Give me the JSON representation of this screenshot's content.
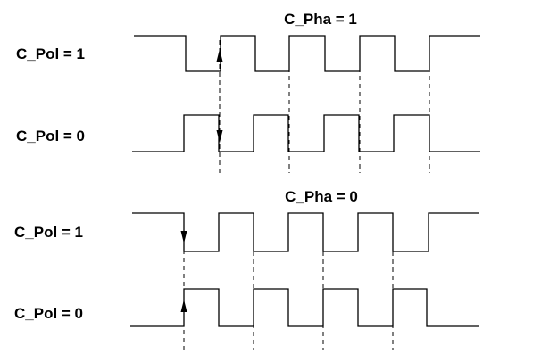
{
  "panels": [
    {
      "title": "C_Pha = 1",
      "rows": [
        {
          "label": "C_Pol = 1",
          "idle": "high",
          "edge_arrow": "up"
        },
        {
          "label": "C_Pol = 0",
          "idle": "low",
          "edge_arrow": "down"
        }
      ],
      "clock_pulses": 4
    },
    {
      "title": "C_Pha = 0",
      "rows": [
        {
          "label": "C_Pol = 1",
          "idle": "high",
          "edge_arrow": "down"
        },
        {
          "label": "C_Pol = 0",
          "idle": "low",
          "edge_arrow": "up"
        }
      ],
      "clock_pulses": 4
    }
  ],
  "colors": {
    "line": "#000000",
    "background": "#ffffff"
  }
}
